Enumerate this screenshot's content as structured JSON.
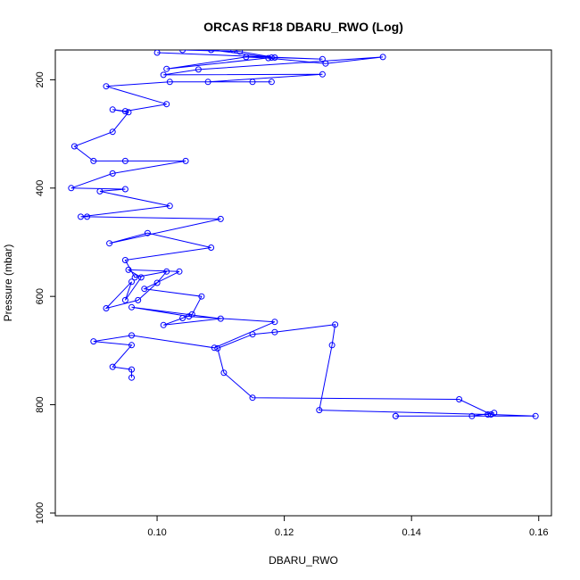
{
  "chart_data": {
    "type": "line",
    "title": "ORCAS RF18 DBARU_RWO (Log)",
    "xlabel": "DBARU_RWO",
    "ylabel": "Pressure (mbar)",
    "xlim": [
      0.084,
      0.162
    ],
    "ylim": [
      1005,
      145
    ],
    "y_reversed": true,
    "x_ticks": [
      0.1,
      0.12,
      0.14,
      0.16
    ],
    "x_tick_labels": [
      "0.10",
      "0.12",
      "0.14",
      "0.16"
    ],
    "y_ticks": [
      200,
      400,
      600,
      800,
      1000
    ],
    "y_tick_labels": [
      "200",
      "400",
      "600",
      "800",
      "1000"
    ],
    "grid": false,
    "legend": "none",
    "series_color": "#0000ff",
    "series": [
      {
        "x": [
          0.096,
          0.096,
          0.093,
          0.096,
          0.09,
          0.096,
          0.109,
          0.1185,
          0.105,
          0.096,
          0.11,
          0.101,
          0.104,
          0.1055,
          0.107,
          0.098,
          0.1035,
          0.0955,
          0.0975,
          0.095,
          0.096,
          0.092,
          0.097,
          0.1,
          0.1015,
          0.0965,
          0.095,
          0.1085,
          0.0985,
          0.0925,
          0.11,
          0.089,
          0.088,
          0.102,
          0.091,
          0.095,
          0.0865,
          0.093,
          0.1045,
          0.095,
          0.09,
          0.087,
          0.093,
          0.0955,
          0.093,
          0.095,
          0.1015,
          0.092,
          0.102,
          0.115,
          0.118,
          0.108,
          0.126,
          0.101,
          0.1065,
          0.1355,
          0.1265,
          0.1175,
          0.114,
          0.1015,
          0.118,
          0.1085,
          0.112,
          0.104,
          0.113,
          0.1185,
          0.126,
          0.1
        ],
        "y": [
          750,
          735,
          730,
          690,
          683,
          672,
          695,
          647,
          637,
          620,
          641,
          653,
          640,
          633,
          600,
          586,
          554,
          551,
          565,
          607,
          573,
          622,
          607,
          575,
          554,
          565,
          533,
          510,
          483,
          502,
          457,
          453,
          453,
          433,
          406,
          402,
          400,
          373,
          350,
          350,
          350,
          323,
          296,
          260,
          255,
          258,
          245,
          212,
          204,
          204,
          204,
          204,
          190,
          191,
          181,
          158,
          170,
          160,
          158,
          180,
          159,
          145,
          145,
          145,
          148,
          159,
          162,
          150
        ]
      },
      {
        "x": [
          0.1375,
          0.1595,
          0.1525,
          0.1475,
          0.115,
          0.1105,
          0.1095,
          0.115,
          0.1185,
          0.128,
          0.1275,
          0.1255,
          0.152,
          0.153,
          0.1495,
          0.1375
        ],
        "y": [
          821,
          821,
          818,
          790,
          787,
          741,
          696,
          670,
          666,
          652,
          690,
          810,
          818,
          815,
          821,
          821
        ]
      }
    ]
  }
}
